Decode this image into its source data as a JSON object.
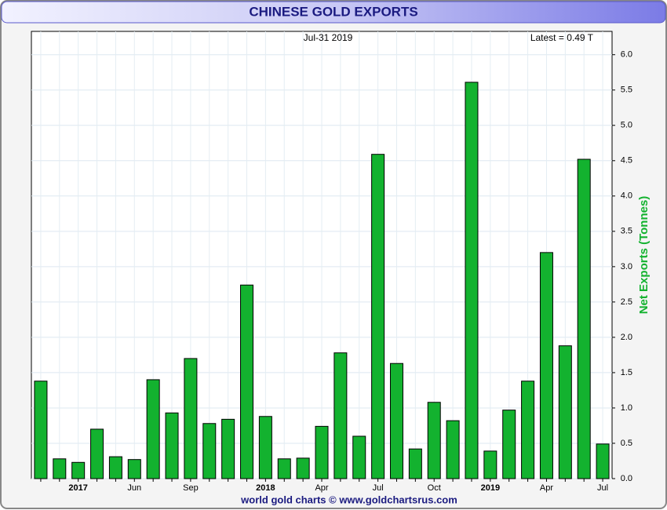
{
  "chart_data": {
    "type": "bar",
    "title": "CHINESE GOLD EXPORTS",
    "date_label": "Jul-31  2019",
    "latest_label": "Latest = 0.49 T",
    "y_label": "Net Exports (Tonnes)",
    "footer": "world gold charts © www.goldchartsrus.com",
    "categories": [
      null,
      null,
      "2017",
      null,
      null,
      "Jun",
      null,
      null,
      "Sep",
      null,
      null,
      null,
      "2018",
      null,
      null,
      "Apr",
      null,
      null,
      "Jul",
      null,
      null,
      "Oct",
      null,
      null,
      "2019",
      null,
      null,
      "Apr",
      null,
      null,
      "Jul"
    ],
    "year_labels": [
      "2017",
      "2018",
      "2019"
    ],
    "values": [
      1.38,
      0.28,
      0.23,
      0.7,
      0.31,
      0.27,
      1.4,
      0.93,
      1.7,
      0.78,
      0.84,
      2.74,
      0.88,
      0.28,
      0.29,
      0.74,
      1.78,
      0.6,
      4.59,
      1.63,
      0.42,
      1.08,
      0.82,
      5.61,
      0.39,
      0.97,
      1.38,
      3.2,
      1.88,
      4.52,
      0.49
    ],
    "color": "#13b22f",
    "ylim": [
      0,
      6.33
    ],
    "yticks": [
      {
        "value": 0,
        "label": "0.0"
      },
      {
        "value": 0.5,
        "label": "0.5"
      },
      {
        "value": 1,
        "label": "1.0"
      },
      {
        "value": 1.5,
        "label": "1.5"
      },
      {
        "value": 2,
        "label": "2.0"
      },
      {
        "value": 2.5,
        "label": "2.5"
      },
      {
        "value": 3,
        "label": "3.0"
      },
      {
        "value": 3.5,
        "label": "3.5"
      },
      {
        "value": 4,
        "label": "4.0"
      },
      {
        "value": 4.5,
        "label": "4.5"
      },
      {
        "value": 5,
        "label": "5.0"
      },
      {
        "value": 5.5,
        "label": "5.5"
      },
      {
        "value": 6,
        "label": "6.0"
      }
    ],
    "grid": true
  }
}
